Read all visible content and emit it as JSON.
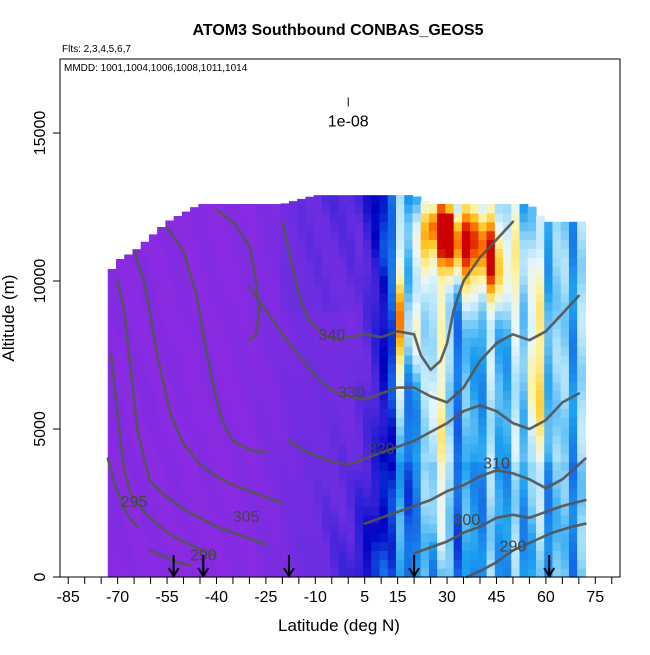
{
  "chart_data": {
    "type": "heatmap",
    "title": "ATOM3 Southbound CONBAS_GEOS5",
    "subtitle_line1": "Flts: 2,3,4,5,6,7",
    "subtitle_line2": "MMDD: 1001,1004,1006,1008,1011,1014",
    "xlabel": "Latitude (deg N)",
    "ylabel": "Altitude (m)",
    "xlim": [
      -87.5,
      82.5
    ],
    "ylim": [
      0,
      17500
    ],
    "x_tick_labels": [
      {
        "value": -85,
        "label": "-85"
      },
      {
        "value": -70,
        "label": "-70"
      },
      {
        "value": -55,
        "label": "-55"
      },
      {
        "value": -40,
        "label": "-40"
      },
      {
        "value": -25,
        "label": "-25"
      },
      {
        "value": -10,
        "label": "-10"
      },
      {
        "value": 5,
        "label": "5"
      },
      {
        "value": 15,
        "label": "15"
      },
      {
        "value": 30,
        "label": "30"
      },
      {
        "value": 45,
        "label": "45"
      },
      {
        "value": 60,
        "label": "60"
      },
      {
        "value": 75,
        "label": "75"
      }
    ],
    "x_minor_ticks": [
      -80,
      -75,
      -65,
      -60,
      -50,
      -45,
      -35,
      -30,
      -20,
      -15,
      -5,
      0,
      10,
      20,
      25,
      35,
      40,
      50,
      55,
      65,
      70,
      80
    ],
    "y_ticks": [
      {
        "value": 0,
        "label": "0"
      },
      {
        "value": 5000,
        "label": "5000"
      },
      {
        "value": 10000,
        "label": "10000"
      },
      {
        "value": 15000,
        "label": "15000"
      }
    ],
    "scale_marker": {
      "label": "1e-08",
      "x": -87.5,
      "x_offset_deg": 87.5,
      "y_top": 17500,
      "y_bottom": 15900
    },
    "scale_marker_x": 0,
    "profile_arrows_lat": [
      -53,
      -44,
      -18,
      20,
      61
    ],
    "envelope": [
      [
        -73,
        300,
        10200
      ],
      [
        -70,
        200,
        10700
      ],
      [
        -65,
        200,
        11000
      ],
      [
        -60,
        200,
        11500
      ],
      [
        -55,
        200,
        12000
      ],
      [
        -50,
        200,
        12300
      ],
      [
        -45,
        200,
        12600
      ],
      [
        -40,
        200,
        12600
      ],
      [
        -30,
        200,
        12600
      ],
      [
        -20,
        200,
        12600
      ],
      [
        -10,
        200,
        12900
      ],
      [
        0,
        200,
        12900
      ],
      [
        10,
        200,
        12900
      ],
      [
        20,
        200,
        12900
      ],
      [
        25,
        200,
        12600
      ],
      [
        30,
        200,
        12600
      ],
      [
        40,
        200,
        12600
      ],
      [
        50,
        200,
        12600
      ],
      [
        55,
        200,
        12600
      ],
      [
        60,
        200,
        12000
      ],
      [
        65,
        200,
        12000
      ],
      [
        70,
        200,
        12000
      ],
      [
        72,
        300,
        12000
      ]
    ],
    "colorscale": [
      {
        "stop": 0.0,
        "color": "#8a2be2"
      },
      {
        "stop": 0.22,
        "color": "#6a2de0"
      },
      {
        "stop": 0.32,
        "color": "#2a1fd6"
      },
      {
        "stop": 0.38,
        "color": "#0000c0"
      },
      {
        "stop": 0.45,
        "color": "#1560e6"
      },
      {
        "stop": 0.55,
        "color": "#1ea0f0"
      },
      {
        "stop": 0.65,
        "color": "#9fdcfa"
      },
      {
        "stop": 0.72,
        "color": "#e6f6ff"
      },
      {
        "stop": 0.8,
        "color": "#fff3a0"
      },
      {
        "stop": 0.88,
        "color": "#ffc21a"
      },
      {
        "stop": 0.94,
        "color": "#ff6a00"
      },
      {
        "stop": 1.0,
        "color": "#cc0000"
      }
    ],
    "contour_labels": [
      {
        "label": "340",
        "lat": -5,
        "alt": 8150
      },
      {
        "label": "330",
        "lat": 1,
        "alt": 6200
      },
      {
        "label": "320",
        "lat": 10,
        "alt": 4300
      },
      {
        "label": "310",
        "lat": 45,
        "alt": 3800
      },
      {
        "label": "300",
        "lat": 36,
        "alt": 1900
      },
      {
        "label": "290",
        "lat": 50,
        "alt": 1000
      },
      {
        "label": "305",
        "lat": -31,
        "alt": 2000
      },
      {
        "label": "295",
        "lat": -65,
        "alt": 2500
      },
      {
        "label": "290",
        "lat": -44,
        "alt": 700
      }
    ],
    "contours": [
      {
        "level": 290,
        "points": [
          [
            36,
            0
          ],
          [
            40,
            200
          ],
          [
            45,
            500
          ],
          [
            50,
            900
          ],
          [
            56,
            1200
          ],
          [
            62,
            1500
          ],
          [
            68,
            1700
          ],
          [
            72,
            1800
          ]
        ]
      },
      {
        "level": 300,
        "points": [
          [
            20,
            800
          ],
          [
            25,
            1000
          ],
          [
            30,
            1200
          ],
          [
            35,
            1500
          ],
          [
            40,
            1700
          ],
          [
            45,
            2000
          ],
          [
            50,
            2100
          ],
          [
            55,
            2000
          ],
          [
            60,
            2200
          ],
          [
            65,
            2400
          ],
          [
            72,
            2600
          ]
        ]
      },
      {
        "level": 310,
        "points": [
          [
            5,
            1800
          ],
          [
            10,
            2000
          ],
          [
            15,
            2200
          ],
          [
            20,
            2400
          ],
          [
            25,
            2600
          ],
          [
            30,
            2900
          ],
          [
            35,
            3100
          ],
          [
            40,
            3400
          ],
          [
            45,
            3600
          ],
          [
            50,
            3500
          ],
          [
            55,
            3300
          ],
          [
            60,
            3000
          ],
          [
            65,
            3300
          ],
          [
            72,
            4000
          ]
        ]
      },
      {
        "level": 320,
        "points": [
          [
            -18,
            4600
          ],
          [
            -12,
            4200
          ],
          [
            -5,
            3900
          ],
          [
            0,
            3800
          ],
          [
            5,
            4000
          ],
          [
            10,
            4200
          ],
          [
            15,
            4400
          ],
          [
            20,
            4600
          ],
          [
            25,
            4900
          ],
          [
            30,
            5200
          ],
          [
            35,
            5600
          ],
          [
            40,
            5800
          ],
          [
            45,
            5600
          ],
          [
            50,
            5200
          ],
          [
            55,
            5000
          ],
          [
            60,
            5300
          ],
          [
            65,
            5900
          ],
          [
            70,
            6200
          ]
        ]
      },
      {
        "level": 330,
        "points": [
          [
            -30,
            9800
          ],
          [
            -25,
            9000
          ],
          [
            -20,
            8200
          ],
          [
            -15,
            7500
          ],
          [
            -10,
            6800
          ],
          [
            -5,
            6300
          ],
          [
            0,
            6100
          ],
          [
            5,
            6000
          ],
          [
            10,
            6200
          ],
          [
            15,
            6400
          ],
          [
            20,
            6400
          ],
          [
            25,
            6100
          ],
          [
            30,
            5900
          ],
          [
            35,
            6400
          ],
          [
            40,
            7300
          ],
          [
            45,
            7900
          ],
          [
            50,
            8200
          ],
          [
            55,
            8000
          ],
          [
            60,
            8300
          ],
          [
            65,
            8900
          ],
          [
            70,
            9500
          ]
        ]
      },
      {
        "level": 340,
        "points": [
          [
            -20,
            12000
          ],
          [
            -18,
            11000
          ],
          [
            -16,
            10000
          ],
          [
            -14,
            9200
          ],
          [
            -12,
            8700
          ],
          [
            -8,
            8200
          ],
          [
            -4,
            8000
          ],
          [
            0,
            8100
          ],
          [
            5,
            8200
          ],
          [
            10,
            8100
          ],
          [
            15,
            8300
          ],
          [
            20,
            8200
          ],
          [
            22,
            7500
          ],
          [
            25,
            7000
          ],
          [
            28,
            7300
          ],
          [
            30,
            7900
          ],
          [
            32,
            9000
          ],
          [
            35,
            10000
          ],
          [
            40,
            10800
          ],
          [
            45,
            11400
          ],
          [
            50,
            12000
          ]
        ]
      },
      {
        "level": 350,
        "points": [
          [
            -40,
            12400
          ],
          [
            -35,
            12000
          ],
          [
            -30,
            11200
          ],
          [
            -28,
            10000
          ],
          [
            -27,
            9000
          ],
          [
            -28,
            8200
          ],
          [
            -30,
            8000
          ]
        ]
      },
      {
        "level": 340,
        "points": [
          [
            -55,
            11800
          ],
          [
            -50,
            11000
          ],
          [
            -46,
            9500
          ],
          [
            -44,
            8200
          ],
          [
            -42,
            7000
          ],
          [
            -40,
            6000
          ],
          [
            -38,
            5200
          ],
          [
            -35,
            4600
          ],
          [
            -30,
            4300
          ],
          [
            -25,
            4200
          ]
        ]
      },
      {
        "level": 330,
        "points": [
          [
            -65,
            11000
          ],
          [
            -62,
            10000
          ],
          [
            -60,
            8800
          ],
          [
            -58,
            7500
          ],
          [
            -56,
            6500
          ],
          [
            -54,
            5500
          ],
          [
            -50,
            4500
          ],
          [
            -45,
            3800
          ],
          [
            -40,
            3400
          ],
          [
            -35,
            3100
          ],
          [
            -30,
            2900
          ],
          [
            -25,
            2700
          ],
          [
            -20,
            2500
          ]
        ]
      },
      {
        "level": 320,
        "points": [
          [
            -70,
            10000
          ],
          [
            -68,
            9000
          ],
          [
            -67,
            8000
          ],
          [
            -66,
            7000
          ],
          [
            -65,
            6000
          ],
          [
            -64,
            5000
          ],
          [
            -62,
            4000
          ],
          [
            -60,
            3200
          ],
          [
            -55,
            2700
          ],
          [
            -50,
            2300
          ],
          [
            -45,
            2000
          ],
          [
            -40,
            1700
          ],
          [
            -35,
            1500
          ],
          [
            -30,
            1300
          ],
          [
            -25,
            1100
          ]
        ]
      },
      {
        "level": 305,
        "points": [
          [
            -72,
            7500
          ],
          [
            -71,
            6500
          ],
          [
            -70,
            5500
          ],
          [
            -69,
            4500
          ],
          [
            -68,
            3600
          ],
          [
            -66,
            2800
          ],
          [
            -62,
            2200
          ],
          [
            -58,
            1800
          ],
          [
            -55,
            1500
          ],
          [
            -50,
            1200
          ],
          [
            -44,
            900
          ],
          [
            -40,
            700
          ]
        ]
      },
      {
        "level": 295,
        "points": [
          [
            -73,
            4000
          ],
          [
            -71,
            3200
          ],
          [
            -69,
            2600
          ],
          [
            -67,
            2100
          ],
          [
            -64,
            1700
          ]
        ]
      },
      {
        "level": 285,
        "points": [
          [
            -60,
            900
          ],
          [
            -56,
            700
          ],
          [
            -52,
            500
          ],
          [
            -48,
            400
          ]
        ]
      }
    ]
  }
}
